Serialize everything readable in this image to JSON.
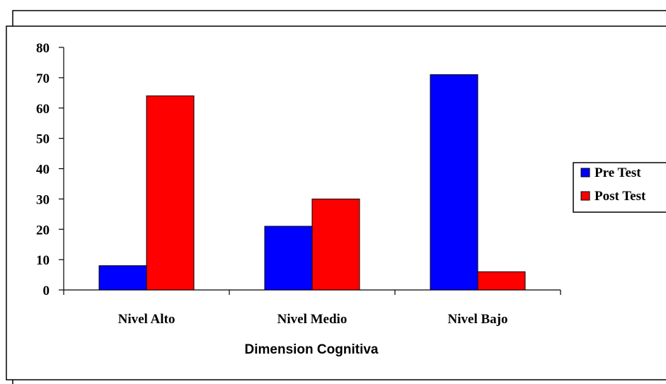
{
  "chart_data": {
    "type": "bar",
    "categories": [
      "Nivel Alto",
      "Nivel Medio",
      "Nivel Bajo"
    ],
    "series": [
      {
        "name": "Pre Test",
        "values": [
          8,
          21,
          71
        ],
        "color": "#0000FF"
      },
      {
        "name": "Post Test",
        "values": [
          64,
          30,
          6
        ],
        "color": "#FF0000"
      }
    ],
    "xlabel": "Dimension Cognitiva",
    "ylabel": "",
    "ylim": [
      0,
      80
    ],
    "yticks": [
      "0",
      "10",
      "20",
      "30",
      "40",
      "50",
      "60",
      "70",
      "80"
    ],
    "grid": false,
    "legend": "right"
  }
}
